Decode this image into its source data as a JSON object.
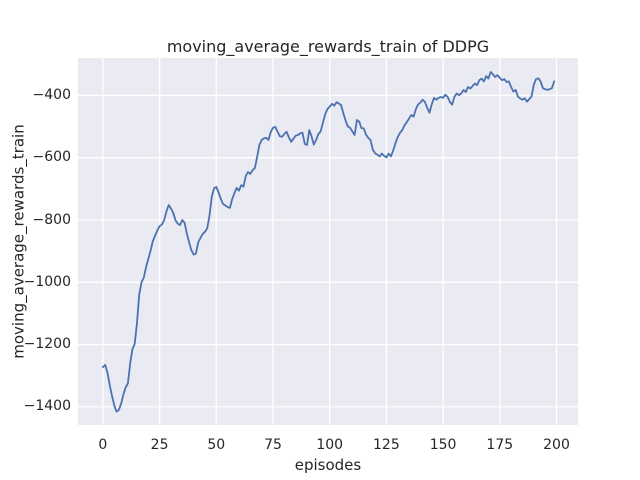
{
  "colors": {
    "line": "#4c72b0",
    "plot_background": "#eaeaf2",
    "gridline": "#ffffff",
    "text": "#262626",
    "figure_background": "#ffffff"
  },
  "chart_data": {
    "type": "line",
    "title": "moving_average_rewards_train of DDPG",
    "xlabel": "episodes",
    "ylabel": "moving_average_rewards_train",
    "x_ticks": [
      0,
      25,
      50,
      75,
      100,
      125,
      150,
      175,
      200
    ],
    "x_tick_labels": [
      "0",
      "25",
      "50",
      "75",
      "100",
      "125",
      "150",
      "175",
      "200"
    ],
    "y_ticks": [
      -400,
      -600,
      -800,
      -1000,
      -1200,
      -1400
    ],
    "y_tick_labels": [
      "−400",
      "−600",
      "−800",
      "−1000",
      "−1200",
      "−1400"
    ],
    "xlim": [
      -11,
      209.5
    ],
    "ylim": [
      -1458,
      -280
    ],
    "grid": true,
    "legend": false,
    "series": [
      {
        "name": "moving_average_rewards_train",
        "x_start": 0,
        "x_step": 1,
        "values": [
          -1272,
          -1265,
          -1290,
          -1330,
          -1365,
          -1395,
          -1415,
          -1410,
          -1390,
          -1360,
          -1338,
          -1324,
          -1260,
          -1215,
          -1198,
          -1130,
          -1040,
          -1000,
          -985,
          -952,
          -925,
          -898,
          -868,
          -850,
          -833,
          -820,
          -814,
          -800,
          -773,
          -752,
          -763,
          -777,
          -801,
          -812,
          -816,
          -800,
          -809,
          -843,
          -872,
          -897,
          -911,
          -908,
          -872,
          -858,
          -845,
          -838,
          -826,
          -785,
          -725,
          -698,
          -694,
          -712,
          -733,
          -749,
          -753,
          -759,
          -761,
          -733,
          -713,
          -697,
          -706,
          -688,
          -693,
          -658,
          -646,
          -652,
          -640,
          -633,
          -598,
          -559,
          -543,
          -538,
          -536,
          -543,
          -518,
          -504,
          -501,
          -516,
          -531,
          -533,
          -524,
          -517,
          -535,
          -549,
          -539,
          -529,
          -527,
          -522,
          -520,
          -556,
          -559,
          -511,
          -532,
          -558,
          -543,
          -524,
          -516,
          -488,
          -460,
          -444,
          -436,
          -427,
          -433,
          -422,
          -426,
          -431,
          -457,
          -481,
          -500,
          -504,
          -516,
          -527,
          -479,
          -484,
          -505,
          -506,
          -526,
          -536,
          -543,
          -574,
          -586,
          -590,
          -596,
          -587,
          -594,
          -599,
          -587,
          -596,
          -577,
          -553,
          -534,
          -520,
          -511,
          -496,
          -486,
          -474,
          -463,
          -468,
          -444,
          -429,
          -423,
          -414,
          -421,
          -440,
          -456,
          -429,
          -408,
          -414,
          -408,
          -405,
          -408,
          -398,
          -405,
          -421,
          -430,
          -405,
          -394,
          -399,
          -394,
          -383,
          -389,
          -373,
          -378,
          -370,
          -362,
          -367,
          -351,
          -346,
          -355,
          -338,
          -346,
          -325,
          -333,
          -341,
          -335,
          -344,
          -351,
          -348,
          -357,
          -355,
          -373,
          -388,
          -382,
          -404,
          -410,
          -414,
          -409,
          -420,
          -412,
          -404,
          -366,
          -348,
          -345,
          -355,
          -377,
          -380,
          -382,
          -380,
          -377,
          -355
        ]
      }
    ]
  }
}
